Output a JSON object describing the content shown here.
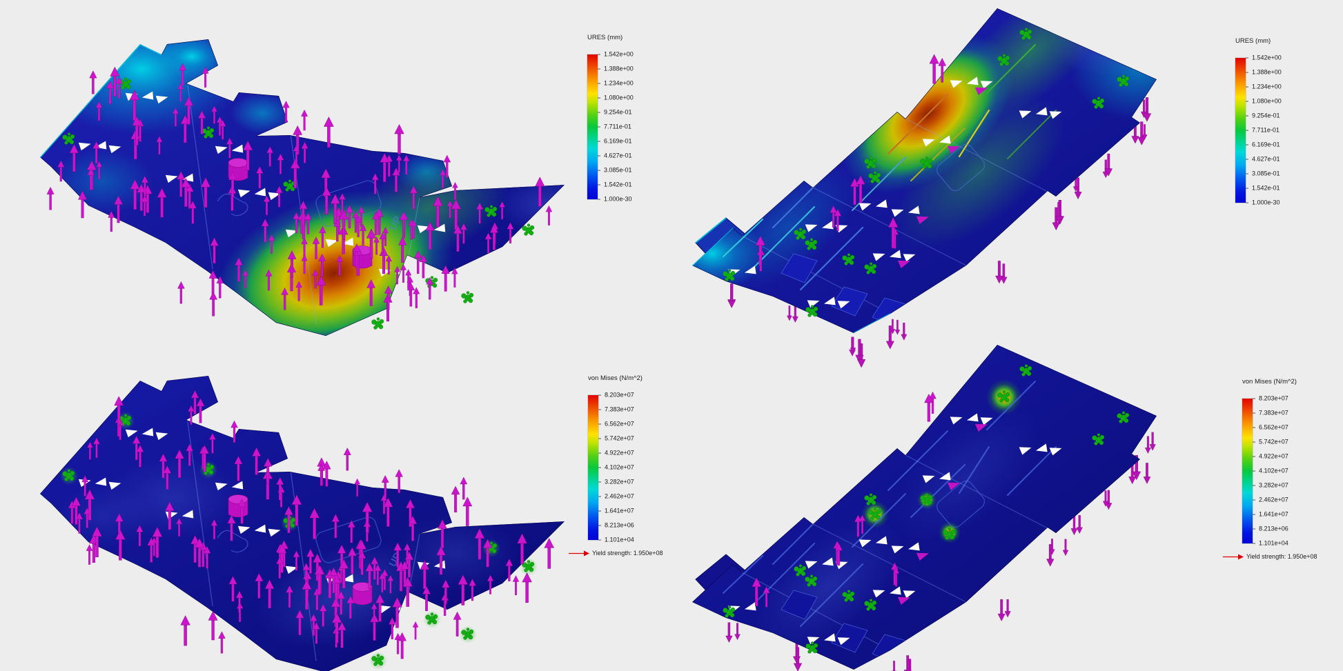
{
  "app": {
    "background": "#ededed",
    "description": "Simulation results: four isometric result plots (displacement and stress) with color-scale legends"
  },
  "engraving": {
    "text": "UP"
  },
  "views": [
    {
      "id": "displacement-top-iso",
      "legend": {
        "title": "URES (mm)",
        "ticks": [
          "1.542e+00",
          "1.388e+00",
          "1.234e+00",
          "1.080e+00",
          "9.254e-01",
          "7.711e-01",
          "6.169e-01",
          "4.627e-01",
          "3.085e-01",
          "1.542e-01",
          "1.000e-30"
        ]
      }
    },
    {
      "id": "displacement-bottom-iso",
      "legend": {
        "title": "URES (mm)",
        "ticks": [
          "1.542e+00",
          "1.388e+00",
          "1.234e+00",
          "1.080e+00",
          "9.254e-01",
          "7.711e-01",
          "6.169e-01",
          "4.627e-01",
          "3.085e-01",
          "1.542e-01",
          "1.000e-30"
        ]
      }
    },
    {
      "id": "stress-top-iso",
      "legend": {
        "title": "von Mises (N/m^2)",
        "ticks": [
          "8.203e+07",
          "7.383e+07",
          "6.562e+07",
          "5.742e+07",
          "4.922e+07",
          "4.102e+07",
          "3.282e+07",
          "2.462e+07",
          "1.641e+07",
          "8.213e+06",
          "1.101e+04"
        ],
        "yield": "Yield strength: 1.950e+08"
      }
    },
    {
      "id": "stress-bottom-iso",
      "legend": {
        "title": "von Mises (N/m^2)",
        "ticks": [
          "8.203e+07",
          "7.383e+07",
          "6.562e+07",
          "5.742e+07",
          "4.922e+07",
          "4.102e+07",
          "3.282e+07",
          "2.462e+07",
          "1.641e+07",
          "8.213e+06",
          "1.101e+04"
        ],
        "yield": "Yield strength: 1.950e+08"
      }
    }
  ],
  "colors": {
    "background": "#ededed",
    "plate_base": "#10128f",
    "load_arrow_magenta": "#cc14cc",
    "fixture_green": "#12ae12",
    "yield_arrow_red": "#e00000",
    "colorbar_top": "#e10400",
    "colorbar_bottom": "#0004d4"
  }
}
